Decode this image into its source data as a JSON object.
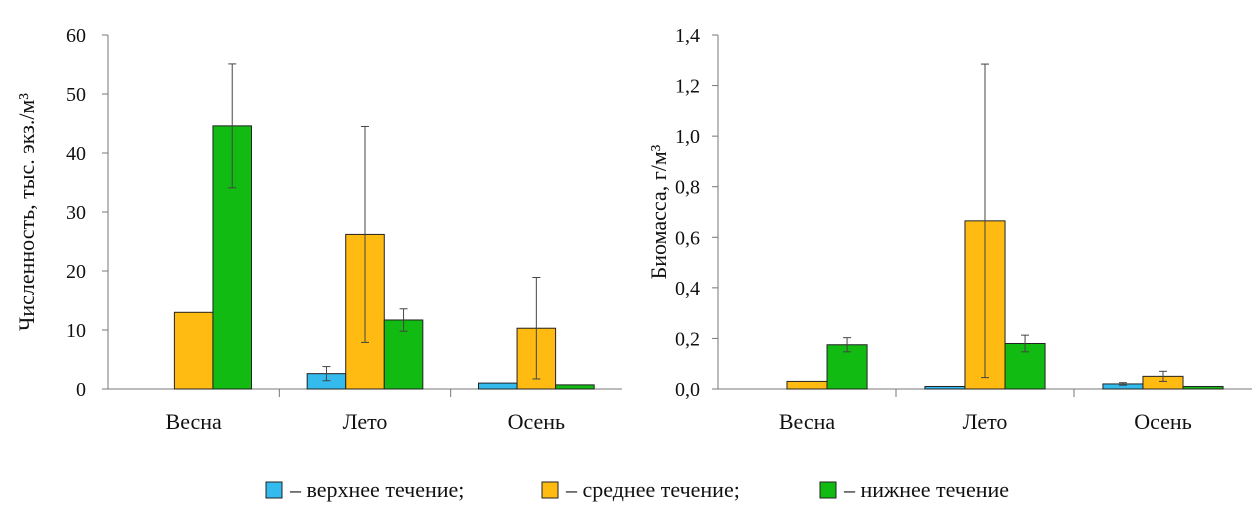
{
  "chart_data": [
    {
      "type": "bar",
      "ylabel": "Численность, тыс. экз./м³",
      "ylim": [
        0,
        60
      ],
      "yticks": [
        "0",
        "10",
        "20",
        "30",
        "40",
        "50",
        "60"
      ],
      "categories": [
        "Весна",
        "Лето",
        "Осень"
      ],
      "series": [
        {
          "name": "верхнее течение",
          "values": [
            0,
            2.6,
            1.0
          ],
          "errors": [
            0,
            1.2,
            0
          ]
        },
        {
          "name": "среднее течение",
          "values": [
            13.0,
            26.2,
            10.3
          ],
          "errors": [
            0,
            18.3,
            8.6
          ]
        },
        {
          "name": "нижнее течение",
          "values": [
            44.6,
            11.7,
            0.7
          ],
          "errors": [
            10.5,
            1.9,
            0
          ]
        }
      ]
    },
    {
      "type": "bar",
      "ylabel": "Биомасса, г/м³",
      "ylim": [
        0,
        1.4
      ],
      "yticks": [
        "0,0",
        "0,2",
        "0,4",
        "0,6",
        "0,8",
        "1,0",
        "1,2",
        "1,4"
      ],
      "categories": [
        "Весна",
        "Лето",
        "Осень"
      ],
      "series": [
        {
          "name": "верхнее течение",
          "values": [
            0,
            0.01,
            0.02
          ],
          "errors": [
            0,
            0,
            0.005
          ]
        },
        {
          "name": "среднее течение",
          "values": [
            0.03,
            0.665,
            0.05
          ],
          "errors": [
            0,
            0.62,
            0.02
          ]
        },
        {
          "name": "нижнее течение",
          "values": [
            0.175,
            0.18,
            0.01
          ],
          "errors": [
            0.028,
            0.033,
            0
          ]
        }
      ]
    }
  ],
  "legend": [
    {
      "label": "– верхнее течение;",
      "color": "#33bbee"
    },
    {
      "label": "– среднее течение;",
      "color": "#ffbb11"
    },
    {
      "label": "– нижнее течение",
      "color": "#11bb11"
    }
  ]
}
